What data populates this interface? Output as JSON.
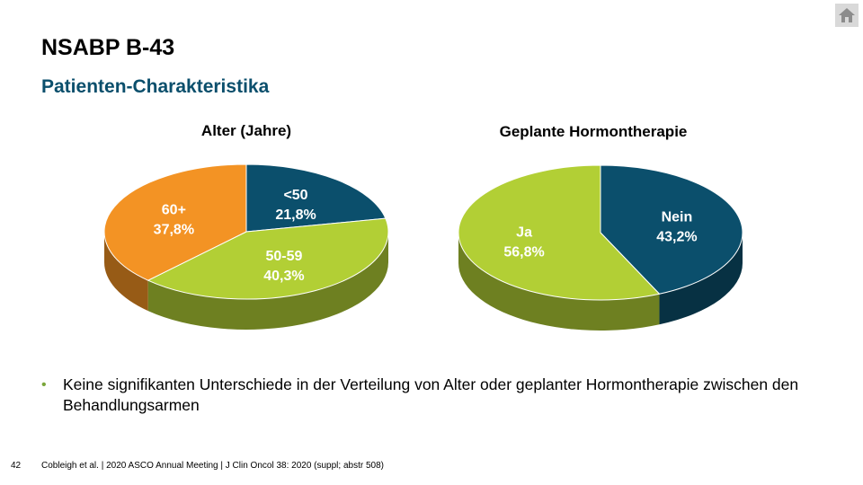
{
  "slide": {
    "title": "NSABP B-43",
    "subtitle": "Patienten-Charakteristika",
    "bullet": "Keine signifikanten Unterschiede in der Verteilung von Alter oder geplanter Hormontherapie zwischen den Behandlungsarmen",
    "page_number": "42",
    "reference": "Cobleigh et al. | 2020 ASCO Annual Meeting | J Clin Oncol 38: 2020 (suppl; abstr 508)",
    "home_icon": "home-icon"
  },
  "colors": {
    "navy": "#0b4f6c",
    "lime": "#b2cf35",
    "orange": "#f39324",
    "bullet": "#7aa63a"
  },
  "chart_data": [
    {
      "type": "pie",
      "title": "Alter (Jahre)",
      "slices": [
        {
          "label": "<50",
          "value_label": "21,8%",
          "value": 21.8,
          "color": "#0b4f6c"
        },
        {
          "label": "50-59",
          "value_label": "40,3%",
          "value": 40.3,
          "color": "#b2cf35"
        },
        {
          "label": "60+",
          "value_label": "37,8%",
          "value": 37.8,
          "color": "#f39324"
        }
      ]
    },
    {
      "type": "pie",
      "title": "Geplante Hormontherapie",
      "slices": [
        {
          "label": "Nein",
          "value_label": "43,2%",
          "value": 43.2,
          "color": "#0b4f6c"
        },
        {
          "label": "Ja",
          "value_label": "56,8%",
          "value": 56.8,
          "color": "#b2cf35"
        }
      ]
    }
  ]
}
